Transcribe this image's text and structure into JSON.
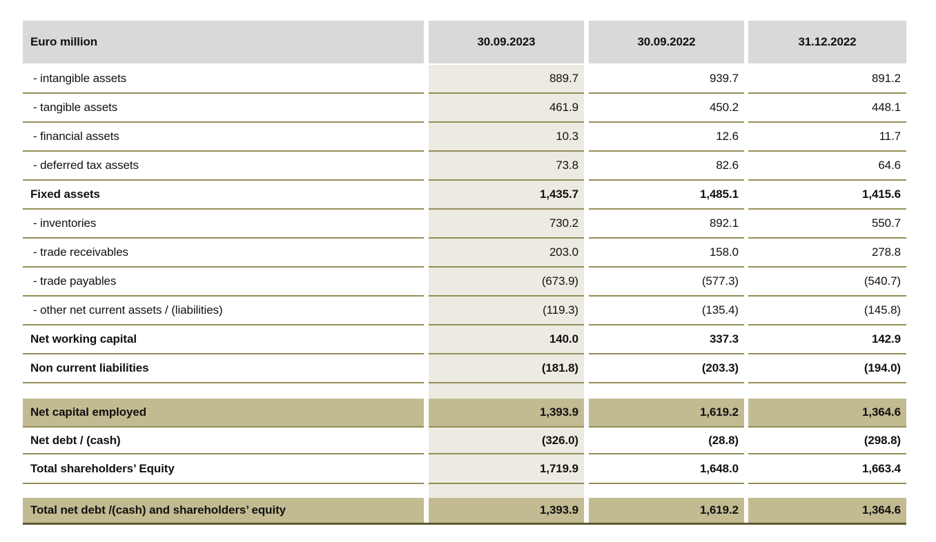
{
  "table": {
    "unit_label": "Euro million",
    "columns": [
      "30.09.2023",
      "30.09.2022",
      "31.12.2022"
    ],
    "rows": [
      {
        "label": "- intangible assets",
        "values": [
          "889.7",
          "939.7",
          "891.2"
        ]
      },
      {
        "label": "- tangible assets",
        "values": [
          "461.9",
          "450.2",
          "448.1"
        ]
      },
      {
        "label": "- financial assets",
        "values": [
          "10.3",
          "12.6",
          "11.7"
        ]
      },
      {
        "label": "- deferred tax assets",
        "values": [
          "73.8",
          "82.6",
          "64.6"
        ]
      },
      {
        "label": "Fixed assets",
        "values": [
          "1,435.7",
          "1,485.1",
          "1,415.6"
        ]
      },
      {
        "label": "- inventories",
        "values": [
          "730.2",
          "892.1",
          "550.7"
        ]
      },
      {
        "label": "- trade receivables",
        "values": [
          "203.0",
          "158.0",
          "278.8"
        ]
      },
      {
        "label": "- trade payables",
        "values": [
          "(673.9)",
          "(577.3)",
          "(540.7)"
        ]
      },
      {
        "label": "- other net current assets / (liabilities)",
        "values": [
          "(119.3)",
          "(135.4)",
          "(145.8)"
        ]
      },
      {
        "label": "Net working capital",
        "values": [
          "140.0",
          "337.3",
          "142.9"
        ]
      },
      {
        "label": "Non current liabilities",
        "values": [
          "(181.8)",
          "(203.3)",
          "(194.0)"
        ]
      },
      {
        "label": "Net capital employed",
        "values": [
          "1,393.9",
          "1,619.2",
          "1,364.6"
        ]
      },
      {
        "label": "Net debt / (cash)",
        "values": [
          "(326.0)",
          "(28.8)",
          "(298.8)"
        ]
      },
      {
        "label": "Total shareholders’ Equity",
        "values": [
          "1,719.9",
          "1,648.0",
          "1,663.4"
        ]
      },
      {
        "label": "Total net debt /(cash) and shareholders’ equity",
        "values": [
          "1,393.9",
          "1,619.2",
          "1,364.6"
        ]
      }
    ],
    "colors": {
      "header_bg": "#d9d9d9",
      "first_value_column_bg": "#edeae1",
      "highlight_row_bg": "#c2bb91",
      "rule_line": "#938d55",
      "bottom_rule_line": "#5f5930"
    }
  }
}
